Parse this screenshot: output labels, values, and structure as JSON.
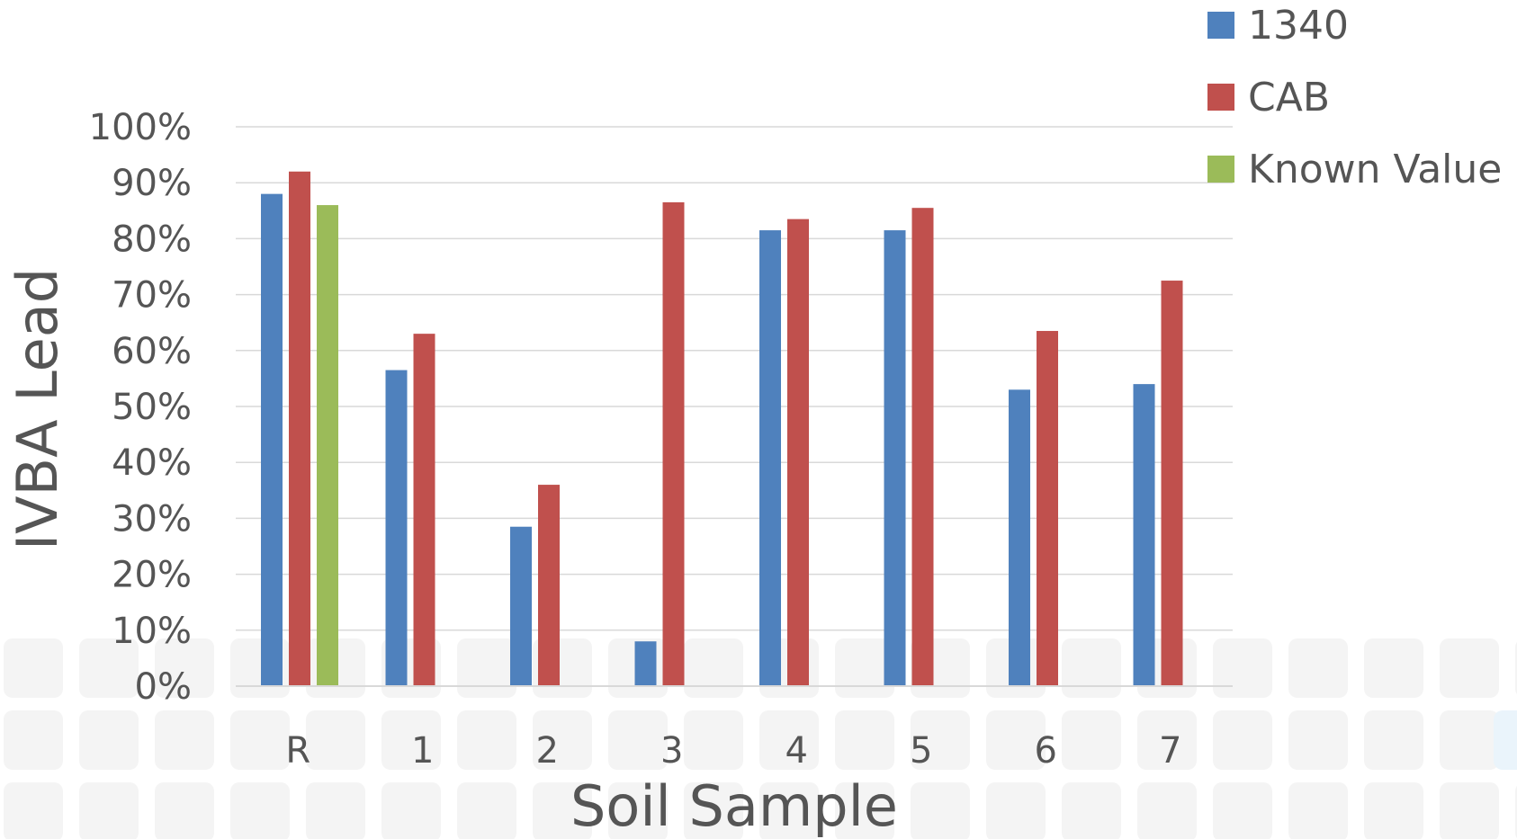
{
  "chart_data": {
    "type": "bar",
    "xlabel": "Soil Sample",
    "ylabel": "IVBA Lead",
    "categories": [
      "R",
      "1",
      "2",
      "3",
      "4",
      "5",
      "6",
      "7"
    ],
    "ylim": [
      0,
      100
    ],
    "yticks": [
      "0%",
      "10%",
      "20%",
      "30%",
      "40%",
      "50%",
      "60%",
      "70%",
      "80%",
      "90%",
      "100%"
    ],
    "grid": true,
    "legend_position": "top-right",
    "series": [
      {
        "name": "1340",
        "color": "#4F81BD",
        "values": [
          88,
          56.5,
          28.5,
          8,
          81.5,
          81.5,
          53,
          54
        ]
      },
      {
        "name": "CAB",
        "color": "#C0504D",
        "values": [
          92,
          63,
          36,
          86.5,
          83.5,
          85.5,
          63.5,
          72.5
        ]
      },
      {
        "name": "Known Value",
        "color": "#9BBB59",
        "values": [
          86,
          null,
          null,
          null,
          null,
          null,
          null,
          null
        ]
      }
    ]
  }
}
